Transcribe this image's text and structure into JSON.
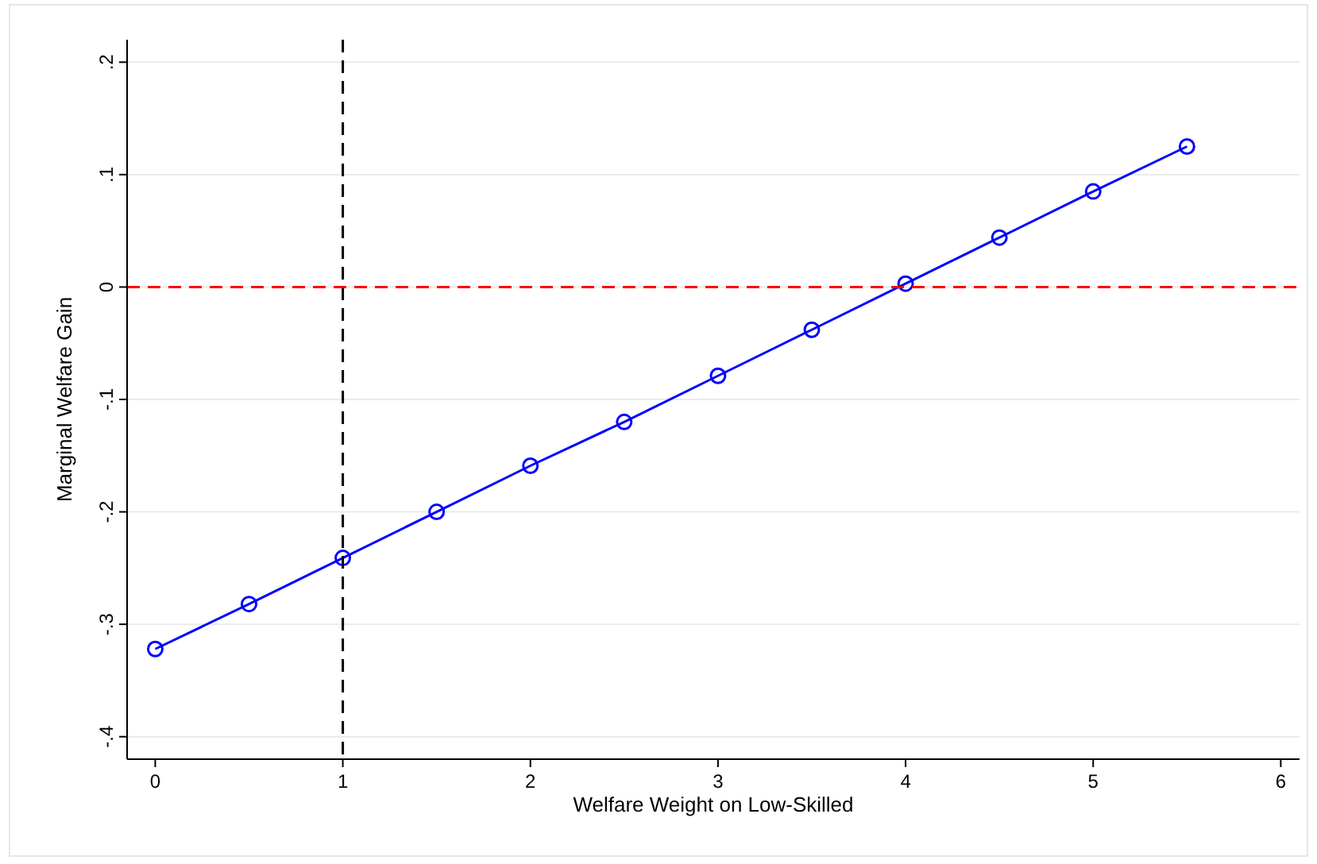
{
  "chart_data": {
    "type": "line",
    "xlabel": "Welfare Weight on Low-Skilled",
    "ylabel": "Marginal Welfare Gain",
    "x": [
      0,
      0.5,
      1,
      1.5,
      2,
      2.5,
      3,
      3.5,
      4,
      4.5,
      5,
      5.5
    ],
    "series": [
      {
        "color": "#0000ff",
        "values": [
          -0.322,
          -0.282,
          -0.241,
          -0.2,
          -0.159,
          -0.12,
          -0.079,
          -0.038,
          0.003,
          0.044,
          0.085,
          0.125
        ]
      }
    ],
    "marker": "circle",
    "line_style": "solid",
    "grid": "y",
    "xlim": [
      -0.15,
      6.1
    ],
    "ylim": [
      -0.42,
      0.22
    ],
    "xticks": [
      0,
      1,
      2,
      3,
      4,
      5,
      6
    ],
    "yticks": [
      {
        "value": -0.4,
        "label": "-.4"
      },
      {
        "value": -0.3,
        "label": "-.3"
      },
      {
        "value": -0.2,
        "label": "-.2"
      },
      {
        "value": -0.1,
        "label": "-.1"
      },
      0,
      {
        "value": 0.1,
        "label": ".1"
      },
      {
        "value": 0.2,
        "label": ".2"
      }
    ],
    "ref_lines": [
      {
        "axis": "x",
        "value": 1,
        "color": "#000000",
        "line_style": "dashed"
      },
      {
        "axis": "y",
        "value": 0,
        "color": "#ff0000",
        "line_style": "dashed"
      }
    ]
  }
}
